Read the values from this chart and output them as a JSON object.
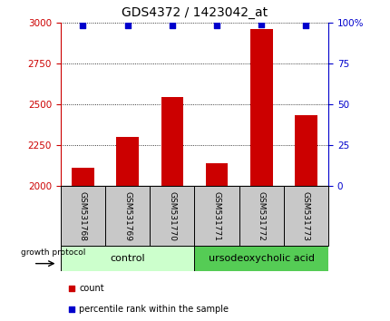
{
  "title": "GDS4372 / 1423042_at",
  "samples": [
    "GSM531768",
    "GSM531769",
    "GSM531770",
    "GSM531771",
    "GSM531772",
    "GSM531773"
  ],
  "bar_values": [
    2115,
    2300,
    2545,
    2140,
    2960,
    2435
  ],
  "percentile_values": [
    98,
    98,
    98,
    98,
    99,
    98
  ],
  "ylim_left": [
    2000,
    3000
  ],
  "ylim_right": [
    0,
    100
  ],
  "yticks_left": [
    2000,
    2250,
    2500,
    2750,
    3000
  ],
  "yticks_right": [
    0,
    25,
    50,
    75,
    100
  ],
  "bar_color": "#cc0000",
  "dot_color": "#0000cc",
  "bar_width": 0.5,
  "control_label": "control",
  "treatment_label": "ursodeoxycholic acid",
  "group_protocol_label": "growth protocol",
  "legend_count_label": "count",
  "legend_percentile_label": "percentile rank within the sample",
  "control_color_light": "#ccffcc",
  "treatment_color": "#55cc55",
  "tick_label_color_left": "#cc0000",
  "tick_label_color_right": "#0000cc"
}
